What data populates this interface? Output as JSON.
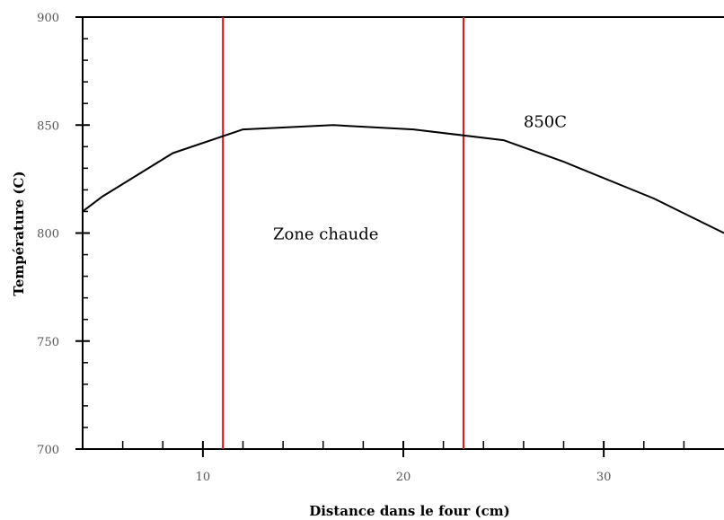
{
  "chart_data": {
    "type": "line",
    "title": "",
    "xlabel": "Distance dans le four (cm)",
    "ylabel": "Température (C)",
    "xlim": [
      4,
      36
    ],
    "ylim": [
      700,
      900
    ],
    "x_ticks": [
      10,
      20,
      30
    ],
    "x_tick_labels": [
      "10",
      "20",
      "30"
    ],
    "y_ticks": [
      700,
      750,
      800,
      850,
      900
    ],
    "y_tick_labels": [
      "700",
      "750",
      "800",
      "850",
      "900"
    ],
    "grid": false,
    "colors": {
      "series": "#000000",
      "zone_lines": "#dd1111"
    },
    "series": [
      {
        "x": [
          4,
          5,
          8.5,
          12,
          16.5,
          20.5,
          25,
          28,
          32.5,
          36
        ],
        "y": [
          810,
          817,
          837,
          848,
          850,
          848,
          843,
          833,
          816,
          800
        ]
      }
    ],
    "vertical_lines": [
      11,
      23
    ],
    "annotations": [
      {
        "text": "Zone chaude",
        "x": 13.5,
        "y": 797
      },
      {
        "text": "850C",
        "x": 26,
        "y": 849
      }
    ]
  }
}
